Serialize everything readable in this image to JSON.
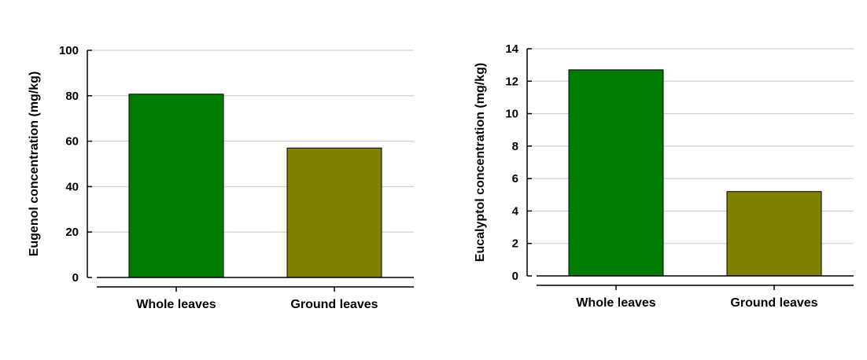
{
  "chart_data": [
    {
      "type": "bar",
      "title": "",
      "xlabel": "",
      "ylabel": "Eugenol concentration (mg/kg)",
      "categories": [
        "Whole leaves",
        "Ground leaves"
      ],
      "values": [
        80.7,
        57.0
      ],
      "ylim": [
        0,
        100
      ],
      "yticks": [
        0,
        20,
        40,
        60,
        80,
        100
      ],
      "grid": true,
      "bar_colors": [
        "#007c00",
        "#808000"
      ]
    },
    {
      "type": "bar",
      "title": "",
      "xlabel": "",
      "ylabel": "Eucalyptol concentration (mg/kg)",
      "categories": [
        "Whole leaves",
        "Ground leaves"
      ],
      "values": [
        12.7,
        5.2
      ],
      "ylim": [
        0,
        14
      ],
      "yticks": [
        0,
        2,
        4,
        6,
        8,
        10,
        12,
        14
      ],
      "grid": true,
      "bar_colors": [
        "#007c00",
        "#808000"
      ]
    }
  ]
}
